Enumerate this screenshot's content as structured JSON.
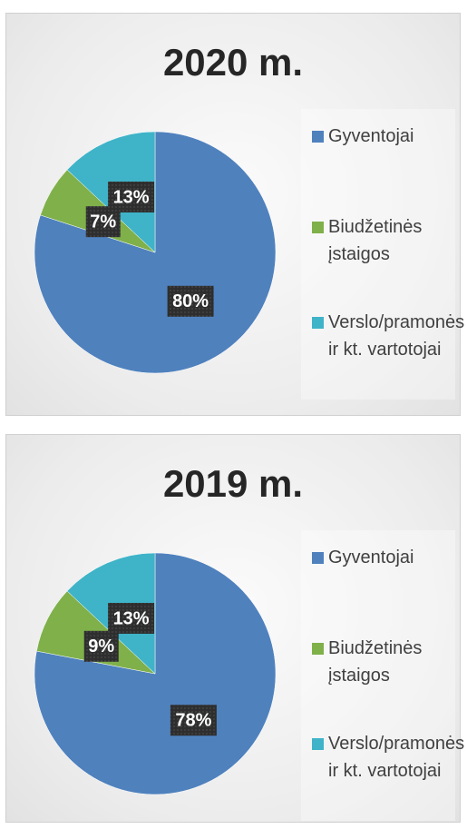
{
  "chart_data": [
    {
      "type": "pie",
      "title": "2020 m.",
      "categories": [
        "Gyventojai",
        "Biudžetinės įstaigos",
        "Verslo/pramonės ir kt. vartotojai"
      ],
      "values": [
        80,
        7,
        13
      ],
      "value_labels": [
        "80%",
        "7%",
        "13%"
      ],
      "colors": [
        "#4f81bd",
        "#7fb04a",
        "#3fb3c8"
      ],
      "legend": "right"
    },
    {
      "type": "pie",
      "title": "2019 m.",
      "categories": [
        "Gyventojai",
        "Biudžetinės įstaigos",
        "Verslo/pramonės ir kt. vartotojai"
      ],
      "values": [
        78,
        9,
        13
      ],
      "value_labels": [
        "78%",
        "9%",
        "13%"
      ],
      "colors": [
        "#4f81bd",
        "#7fb04a",
        "#3fb3c8"
      ],
      "legend": "right"
    }
  ]
}
